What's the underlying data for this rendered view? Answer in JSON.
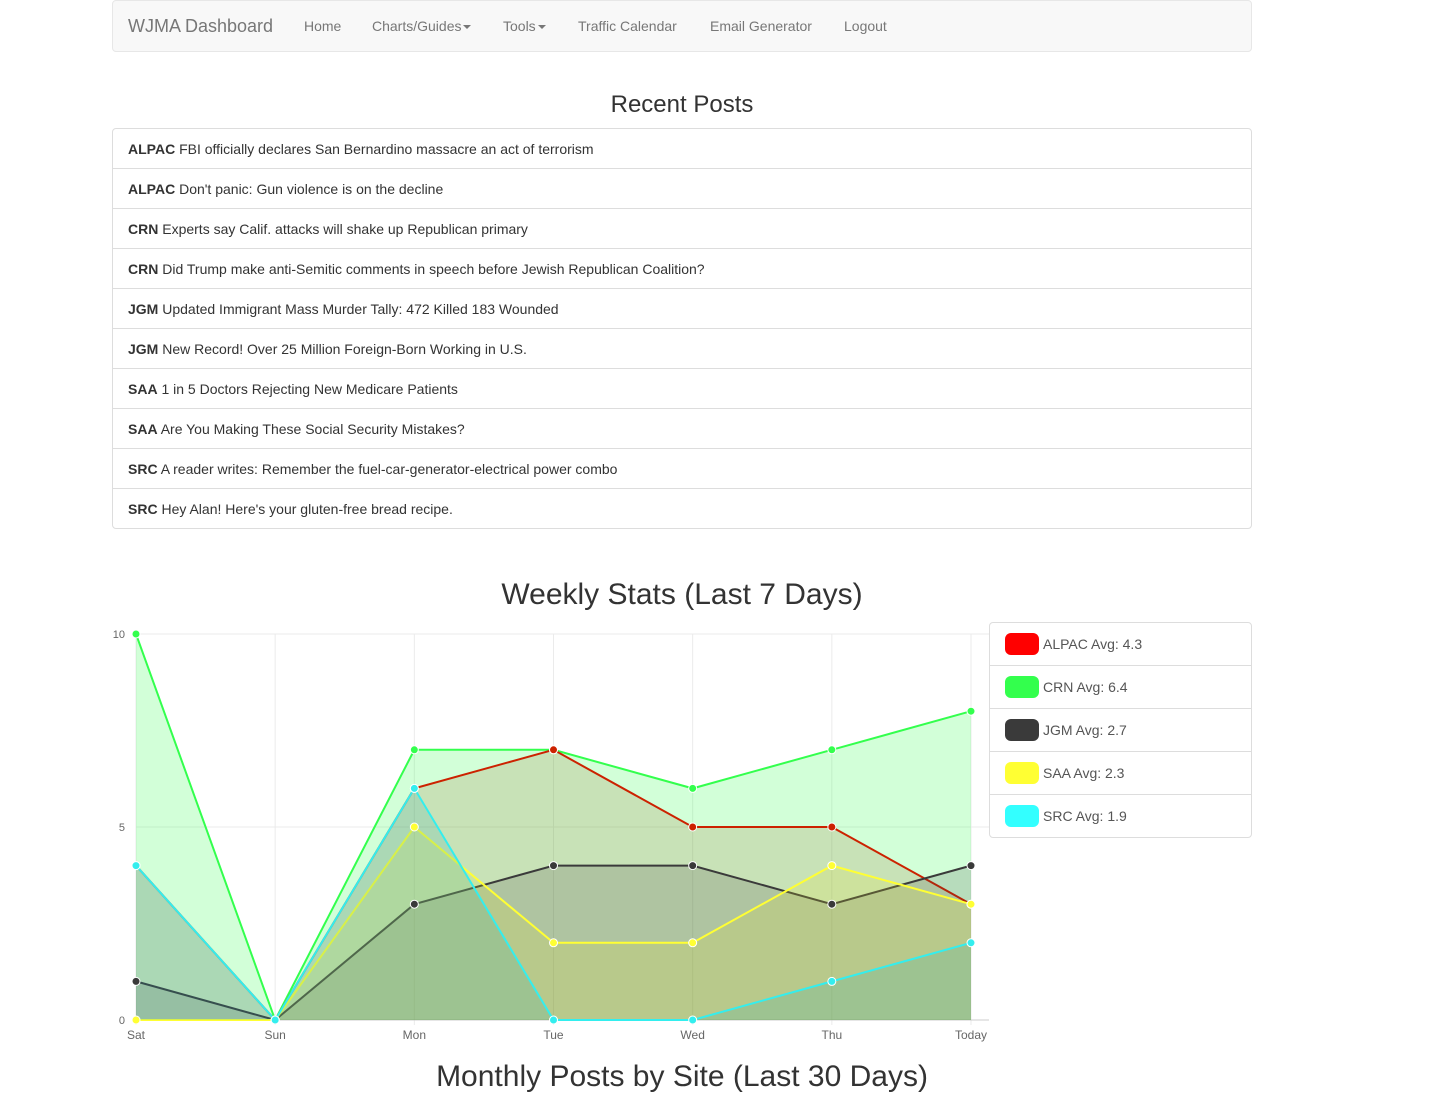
{
  "navbar": {
    "brand": "WJMA Dashboard",
    "items": [
      {
        "label": "Home",
        "dropdown": false
      },
      {
        "label": "Charts/Guides",
        "dropdown": true
      },
      {
        "label": "Tools",
        "dropdown": true
      },
      {
        "label": "Traffic Calendar",
        "dropdown": false
      },
      {
        "label": "Email Generator",
        "dropdown": false
      },
      {
        "label": "Logout",
        "dropdown": false
      }
    ]
  },
  "recent_posts": {
    "title": "Recent Posts",
    "items": [
      {
        "site": "ALPAC",
        "title": "FBI officially declares San Bernardino massacre an act of terrorism"
      },
      {
        "site": "ALPAC",
        "title": "Don't panic: Gun violence is on the decline"
      },
      {
        "site": "CRN",
        "title": "Experts say Calif. attacks will shake up Republican primary"
      },
      {
        "site": "CRN",
        "title": "Did Trump make anti-Semitic comments in speech before Jewish Republican Coalition?"
      },
      {
        "site": "JGM",
        "title": "Updated Immigrant Mass Murder Tally: 472 Killed 183 Wounded"
      },
      {
        "site": "JGM",
        "title": "New Record! Over 25 Million Foreign-Born Working in U.S."
      },
      {
        "site": "SAA",
        "title": "1 in 5 Doctors Rejecting New Medicare Patients"
      },
      {
        "site": "SAA",
        "title": "Are You Making These Social Security Mistakes?"
      },
      {
        "site": "SRC",
        "title": "A reader writes: Remember the fuel-car-generator-electrical power combo"
      },
      {
        "site": "SRC",
        "title": "Hey Alan! Here's your gluten-free bread recipe."
      }
    ]
  },
  "weekly": {
    "title": "Weekly Stats (Last 7 Days)",
    "legend": [
      {
        "label": "ALPAC Avg: 4.3",
        "color": "#ff0000"
      },
      {
        "label": "CRN Avg: 6.4",
        "color": "#33ff4d"
      },
      {
        "label": "JGM Avg: 2.7",
        "color": "#3a3a3a"
      },
      {
        "label": "SAA Avg: 2.3",
        "color": "#ffff33"
      },
      {
        "label": "SRC Avg: 1.9",
        "color": "#33ffff"
      }
    ]
  },
  "monthly": {
    "title": "Monthly Posts by Site (Last 30 Days)"
  },
  "chart_data": {
    "type": "area",
    "title": "Weekly Stats (Last 7 Days)",
    "categories": [
      "Sat",
      "Sun",
      "Mon",
      "Tue",
      "Wed",
      "Thu",
      "Today"
    ],
    "yticks": [
      0,
      5,
      10
    ],
    "ylim": [
      0,
      10
    ],
    "xlabel": "",
    "ylabel": "",
    "series": [
      {
        "name": "CRN",
        "values": [
          10,
          0,
          7,
          7,
          6,
          7,
          8
        ],
        "stroke": "#33ff4d",
        "fill": "rgba(51,255,77,0.22)"
      },
      {
        "name": "ALPAC",
        "values": [
          4,
          0,
          6,
          7,
          5,
          5,
          3
        ],
        "stroke": "#cc2200",
        "fill": "rgba(150,60,0,0.15)"
      },
      {
        "name": "JGM",
        "values": [
          1,
          0,
          3,
          4,
          4,
          3,
          4
        ],
        "stroke": "#3a3a3a",
        "fill": "rgba(60,60,60,0.18)"
      },
      {
        "name": "SAA",
        "values": [
          0,
          0,
          5,
          2,
          2,
          4,
          3
        ],
        "stroke": "#ffff33",
        "fill": "rgba(230,230,40,0.18)"
      },
      {
        "name": "SRC",
        "values": [
          4,
          0,
          6,
          0,
          0,
          1,
          2
        ],
        "stroke": "#33eeee",
        "fill": "rgba(40,170,170,0.18)"
      }
    ]
  }
}
